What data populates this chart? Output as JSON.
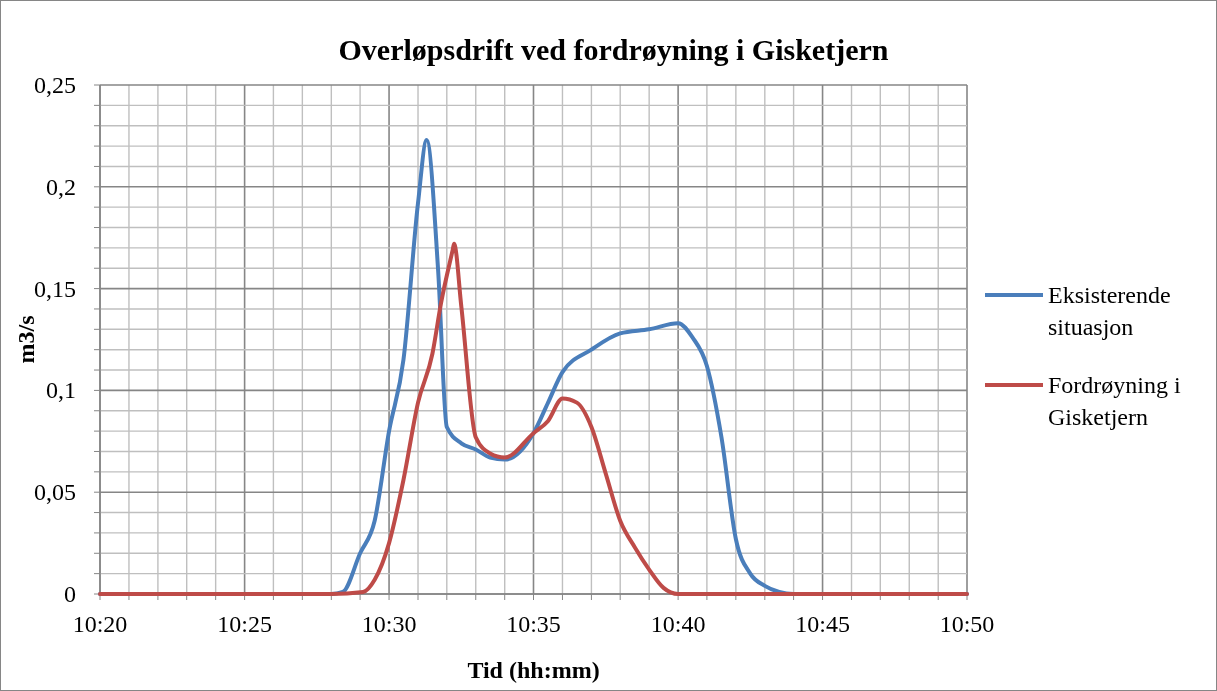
{
  "chart_data": {
    "type": "line",
    "title": "Overløpsdrift ved fordrøyning i Gisketjern",
    "xlabel": "Tid (hh:mm)",
    "ylabel": "m3/s",
    "xlim": [
      10.3333,
      10.8333
    ],
    "xticks": [
      {
        "value": 10.3333,
        "label": "10:20"
      },
      {
        "value": 10.35,
        "label": null
      },
      {
        "value": 10.3667,
        "label": null
      },
      {
        "value": 10.3833,
        "label": null
      },
      {
        "value": 10.4,
        "label": null
      },
      {
        "value": 10.4167,
        "label": "10:25"
      },
      {
        "value": 10.4333,
        "label": null
      },
      {
        "value": 10.45,
        "label": null
      },
      {
        "value": 10.4667,
        "label": null
      },
      {
        "value": 10.4833,
        "label": null
      },
      {
        "value": 10.5,
        "label": "10:30"
      },
      {
        "value": 10.5167,
        "label": null
      },
      {
        "value": 10.5333,
        "label": null
      },
      {
        "value": 10.55,
        "label": null
      },
      {
        "value": 10.5667,
        "label": null
      },
      {
        "value": 10.5833,
        "label": "10:35"
      },
      {
        "value": 10.6,
        "label": null
      },
      {
        "value": 10.6167,
        "label": null
      },
      {
        "value": 10.6333,
        "label": null
      },
      {
        "value": 10.65,
        "label": null
      },
      {
        "value": 10.6667,
        "label": "10:40"
      },
      {
        "value": 10.6833,
        "label": null
      },
      {
        "value": 10.7,
        "label": null
      },
      {
        "value": 10.7167,
        "label": null
      },
      {
        "value": 10.7333,
        "label": null
      },
      {
        "value": 10.75,
        "label": "10:45"
      },
      {
        "value": 10.7667,
        "label": null
      },
      {
        "value": 10.7833,
        "label": null
      },
      {
        "value": 10.8,
        "label": null
      },
      {
        "value": 10.8167,
        "label": null
      },
      {
        "value": 10.8333,
        "label": "10:50"
      }
    ],
    "ylim": [
      0,
      0.25
    ],
    "yticks": [
      0,
      {
        "value": 0.01,
        "label": null
      },
      {
        "value": 0.02,
        "label": null
      },
      {
        "value": 0.03,
        "label": null
      },
      {
        "value": 0.04,
        "label": null
      },
      {
        "value": 0.05,
        "label": "0,05"
      },
      {
        "value": 0.06,
        "label": null
      },
      {
        "value": 0.07,
        "label": null
      },
      {
        "value": 0.08,
        "label": null
      },
      {
        "value": 0.09,
        "label": null
      },
      {
        "value": 0.1,
        "label": "0,1"
      },
      {
        "value": 0.11,
        "label": null
      },
      {
        "value": 0.12,
        "label": null
      },
      {
        "value": 0.13,
        "label": null
      },
      {
        "value": 0.14,
        "label": null
      },
      {
        "value": 0.15,
        "label": "0,15"
      },
      {
        "value": 0.16,
        "label": null
      },
      {
        "value": 0.17,
        "label": null
      },
      {
        "value": 0.18,
        "label": null
      },
      {
        "value": 0.19,
        "label": null
      },
      {
        "value": 0.2,
        "label": "0,2"
      },
      {
        "value": 0.21,
        "label": null
      },
      {
        "value": 0.22,
        "label": null
      },
      {
        "value": 0.23,
        "label": null
      },
      {
        "value": 0.24,
        "label": null
      },
      {
        "value": 0.25,
        "label": "0,25"
      }
    ],
    "grid": true,
    "legend": "right",
    "line_style": "solid",
    "marker": "none",
    "series": [
      {
        "name": "Eksisterende situasjon",
        "color": "#4a7ebb",
        "x": [
          10.3333,
          10.4667,
          10.4733,
          10.4833,
          10.4917,
          10.5,
          10.5083,
          10.5167,
          10.5217,
          10.5283,
          10.5333,
          10.5417,
          10.55,
          10.5583,
          10.5667,
          10.5833,
          10.5917,
          10.6,
          10.6167,
          10.6333,
          10.65,
          10.6667,
          10.675,
          10.6833,
          10.6917,
          10.7,
          10.7083,
          10.7167,
          10.725,
          10.7333,
          10.8333
        ],
        "values": [
          0,
          0,
          0.001,
          0.02,
          0.036,
          0.08,
          0.115,
          0.192,
          0.223,
          0.159,
          0.082,
          0.074,
          0.071,
          0.067,
          0.066,
          0.079,
          0.094,
          0.109,
          0.12,
          0.128,
          0.13,
          0.133,
          0.126,
          0.112,
          0.077,
          0.027,
          0.01,
          0.004,
          0.001,
          0,
          0
        ]
      },
      {
        "name": "Fordrøyning i Gisketjern",
        "color": "#be4b48",
        "x": [
          10.3333,
          10.4667,
          10.485,
          10.4917,
          10.5,
          10.5083,
          10.5167,
          10.525,
          10.53,
          10.5367,
          10.5375,
          10.5417,
          10.55,
          10.5583,
          10.5667,
          10.5833,
          10.5917,
          10.6,
          10.6083,
          10.6167,
          10.625,
          10.6333,
          10.6417,
          10.65,
          10.6583,
          10.6667,
          10.8333
        ],
        "values": [
          0,
          0,
          0.001,
          0.007,
          0.025,
          0.056,
          0.094,
          0.118,
          0.143,
          0.169,
          0.172,
          0.141,
          0.077,
          0.069,
          0.067,
          0.079,
          0.085,
          0.096,
          0.094,
          0.082,
          0.059,
          0.036,
          0.023,
          0.012,
          0.003,
          0,
          0
        ]
      }
    ]
  }
}
